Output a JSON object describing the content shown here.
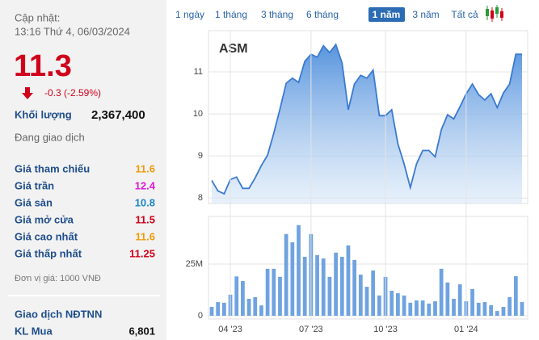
{
  "panel": {
    "update_label": "Cập nhật:",
    "update_time": "13:16 Thứ 4, 06/03/2024",
    "price": "11.3",
    "change": "-0.3 (-2.59%)",
    "volume_label": "Khối lượng",
    "volume": "2,367,400",
    "status": "Đang giao dịch",
    "rows": [
      [
        "Giá tham chiếu",
        "11.6"
      ],
      [
        "Giá trần",
        "12.4"
      ],
      [
        "Giá sàn",
        "10.8"
      ],
      [
        "Giá mở cửa",
        "11.5"
      ],
      [
        "Giá cao nhất",
        "11.6"
      ],
      [
        "Giá thấp nhất",
        "11.25"
      ]
    ],
    "unit": "Đơn vị giá: 1000 VNĐ",
    "foreign_title": "Giao dịch NĐTNN",
    "foreign_rows": [
      [
        "KL Mua",
        "6,801"
      ]
    ]
  },
  "range_buttons": [
    "1 ngày",
    "1 tháng",
    "3 tháng",
    "6 tháng",
    "1 năm",
    "3 năm",
    "Tất cả"
  ],
  "chart_data": [
    {
      "type": "area",
      "title": "ASM",
      "color": "#3a7ad0",
      "values": [
        8.42,
        8.17,
        8.1,
        8.44,
        8.5,
        8.23,
        8.23,
        8.48,
        8.77,
        9.02,
        9.54,
        10.12,
        10.73,
        10.85,
        10.75,
        11.25,
        11.42,
        11.35,
        11.62,
        11.46,
        11.65,
        11.21,
        10.1,
        10.71,
        10.92,
        10.85,
        11.04,
        9.96,
        9.96,
        10.1,
        9.29,
        8.81,
        8.25,
        8.81,
        9.13,
        9.13,
        8.98,
        9.63,
        9.98,
        9.88,
        10.17,
        10.48,
        10.71,
        10.46,
        10.33,
        10.48,
        10.15,
        10.5,
        10.71,
        11.42,
        11.42
      ],
      "ylim": [
        7.87,
        11.98
      ],
      "yticks": [
        8,
        9,
        10,
        11
      ],
      "grid": true
    },
    {
      "type": "bar",
      "color": "#6fa3e0",
      "categories": [
        null,
        null,
        null,
        "04 '23",
        null,
        null,
        null,
        null,
        null,
        null,
        null,
        null,
        null,
        null,
        null,
        null,
        "07 '23",
        null,
        null,
        null,
        null,
        null,
        null,
        null,
        null,
        null,
        null,
        null,
        "10 '23",
        null,
        null,
        null,
        null,
        null,
        null,
        null,
        null,
        null,
        null,
        null,
        null,
        "01 '24",
        null,
        null,
        null,
        null,
        null,
        null,
        null,
        null,
        null
      ],
      "values": [
        4300000,
        6600000,
        6300000,
        10200000,
        19000000,
        16800000,
        8200000,
        9000000,
        5000000,
        22700000,
        22700000,
        18800000,
        39500000,
        35500000,
        43800000,
        28500000,
        39500000,
        29300000,
        27700000,
        18800000,
        30500000,
        28500000,
        34000000,
        27000000,
        19900000,
        14000000,
        21900000,
        9800000,
        18800000,
        12100000,
        10900000,
        9800000,
        6300000,
        7400000,
        7400000,
        5900000,
        7000000,
        22700000,
        16100000,
        8200000,
        15200000,
        7000000,
        12900000,
        6300000,
        6600000,
        5100000,
        2300000,
        4300000,
        9000000,
        19100000,
        6600000
      ],
      "ylim": [
        0,
        48000000
      ],
      "yticks": [
        0,
        {
          "value": 25000000,
          "label": "25M"
        }
      ],
      "grid": true
    }
  ]
}
